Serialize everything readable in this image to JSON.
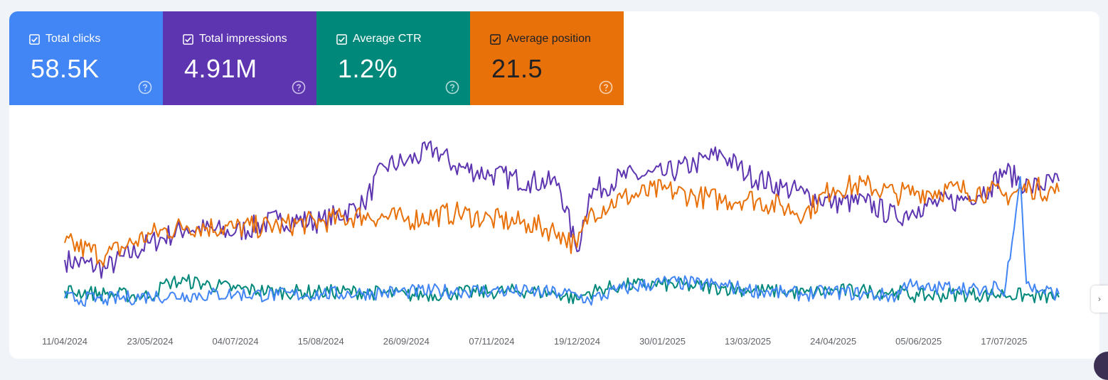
{
  "metrics": [
    {
      "label": "Total clicks",
      "value": "58.5K",
      "color": "#4285f4",
      "checked": true
    },
    {
      "label": "Total impressions",
      "value": "4.91M",
      "color": "#5e35b1",
      "checked": true
    },
    {
      "label": "Average CTR",
      "value": "1.2%",
      "color": "#00897b",
      "checked": true
    },
    {
      "label": "Average position",
      "value": "21.5",
      "color": "#e8710a",
      "checked": true
    }
  ],
  "icons": {
    "checkbox": "checkbox-checked-icon",
    "help": "help-circle-icon",
    "expand": "chevron-right-icon"
  },
  "side_button_glyph": "›",
  "chart_data": {
    "type": "line",
    "x_start": "2024-04-11",
    "x_end": "2025-08-13",
    "x_tick_labels": [
      "11/04/2024",
      "23/05/2024",
      "04/07/2024",
      "15/08/2024",
      "26/09/2024",
      "07/11/2024",
      "19/12/2024",
      "30/01/2025",
      "13/03/2025",
      "24/04/2025",
      "05/06/2025",
      "17/07/2025"
    ],
    "y_axis": "independent normalized scale per series, no labels shown",
    "grid": false,
    "legend": "metric cards above chart",
    "series": [
      {
        "name": "Total impressions",
        "color": "#5e35b1",
        "x": [
          "2024-04-11",
          "2024-05-01",
          "2024-05-23",
          "2024-06-10",
          "2024-07-04",
          "2024-07-25",
          "2024-08-15",
          "2024-09-05",
          "2024-09-15",
          "2024-09-26",
          "2024-10-10",
          "2024-10-20",
          "2024-11-07",
          "2024-11-25",
          "2024-12-10",
          "2024-12-19",
          "2024-12-25",
          "2025-01-10",
          "2025-01-30",
          "2025-02-15",
          "2025-02-28",
          "2025-03-13",
          "2025-03-30",
          "2025-04-10",
          "2025-04-24",
          "2025-05-10",
          "2025-05-25",
          "2025-06-05",
          "2025-06-25",
          "2025-07-10",
          "2025-07-17",
          "2025-07-30",
          "2025-08-13"
        ],
        "y": [
          0.18,
          0.14,
          0.26,
          0.33,
          0.31,
          0.37,
          0.36,
          0.44,
          0.62,
          0.64,
          0.7,
          0.62,
          0.58,
          0.55,
          0.54,
          0.22,
          0.49,
          0.57,
          0.58,
          0.63,
          0.68,
          0.58,
          0.52,
          0.49,
          0.45,
          0.45,
          0.38,
          0.43,
          0.46,
          0.52,
          0.6,
          0.52,
          0.55
        ]
      },
      {
        "name": "Average position",
        "color": "#e8710a",
        "x": [
          "2024-04-11",
          "2024-05-01",
          "2024-05-23",
          "2024-06-10",
          "2024-07-04",
          "2024-07-25",
          "2024-08-15",
          "2024-09-05",
          "2024-09-26",
          "2024-10-20",
          "2024-11-07",
          "2024-11-25",
          "2024-12-10",
          "2024-12-19",
          "2024-12-25",
          "2025-01-10",
          "2025-01-30",
          "2025-02-15",
          "2025-03-01",
          "2025-03-13",
          "2025-03-30",
          "2025-04-10",
          "2025-04-24",
          "2025-05-10",
          "2025-05-25",
          "2025-06-05",
          "2025-06-25",
          "2025-07-10",
          "2025-07-17",
          "2025-07-30",
          "2025-08-13"
        ],
        "y": [
          0.26,
          0.2,
          0.3,
          0.34,
          0.33,
          0.34,
          0.36,
          0.39,
          0.37,
          0.4,
          0.37,
          0.35,
          0.31,
          0.24,
          0.4,
          0.47,
          0.51,
          0.48,
          0.46,
          0.47,
          0.43,
          0.4,
          0.52,
          0.53,
          0.49,
          0.5,
          0.51,
          0.5,
          0.48,
          0.52,
          0.5
        ]
      },
      {
        "name": "Average CTR",
        "color": "#00897b",
        "x": [
          "2024-04-11",
          "2024-05-01",
          "2024-05-23",
          "2024-06-01",
          "2024-06-10",
          "2024-07-04",
          "2024-07-25",
          "2024-08-15",
          "2024-09-05",
          "2024-09-26",
          "2024-10-20",
          "2024-11-07",
          "2024-11-25",
          "2024-12-10",
          "2024-12-19",
          "2024-12-25",
          "2025-01-10",
          "2025-01-30",
          "2025-02-15",
          "2025-03-01",
          "2025-03-13",
          "2025-03-30",
          "2025-04-10",
          "2025-04-24",
          "2025-05-10",
          "2025-05-25",
          "2025-06-05",
          "2025-06-25",
          "2025-07-10",
          "2025-07-17",
          "2025-07-30",
          "2025-08-13"
        ],
        "y": [
          0.035,
          0.02,
          0.01,
          0.075,
          0.08,
          0.045,
          0.03,
          0.03,
          0.03,
          0.015,
          0.025,
          0.03,
          0.035,
          0.02,
          -0.005,
          0.03,
          0.06,
          0.065,
          0.055,
          0.05,
          0.04,
          0.03,
          0.025,
          0.035,
          0.035,
          0.03,
          0.01,
          0.02,
          0.015,
          0.02,
          0.01,
          0.005
        ]
      },
      {
        "name": "Total clicks",
        "color": "#4285f4",
        "x": [
          "2024-04-11",
          "2024-05-01",
          "2024-05-23",
          "2024-06-10",
          "2024-07-04",
          "2024-07-25",
          "2024-08-15",
          "2024-09-05",
          "2024-09-26",
          "2024-10-20",
          "2024-11-07",
          "2024-11-25",
          "2024-12-10",
          "2024-12-19",
          "2024-12-25",
          "2025-01-10",
          "2025-01-30",
          "2025-02-15",
          "2025-03-01",
          "2025-03-13",
          "2025-03-30",
          "2025-04-10",
          "2025-04-24",
          "2025-05-10",
          "2025-05-25",
          "2025-06-01",
          "2025-06-05",
          "2025-06-25",
          "2025-07-10",
          "2025-07-12",
          "2025-07-17",
          "2025-07-25",
          "2025-07-28",
          "2025-07-30",
          "2025-08-13"
        ],
        "y": [
          0.0,
          -0.005,
          0.01,
          0.015,
          0.02,
          0.015,
          0.02,
          0.025,
          0.03,
          0.035,
          0.035,
          0.03,
          0.025,
          0.015,
          -0.01,
          0.045,
          0.075,
          0.07,
          0.06,
          0.04,
          0.025,
          0.02,
          0.03,
          0.02,
          0.01,
          0.09,
          0.04,
          0.055,
          0.02,
          0.08,
          0.01,
          0.57,
          0.07,
          0.05,
          0.02
        ]
      }
    ]
  }
}
